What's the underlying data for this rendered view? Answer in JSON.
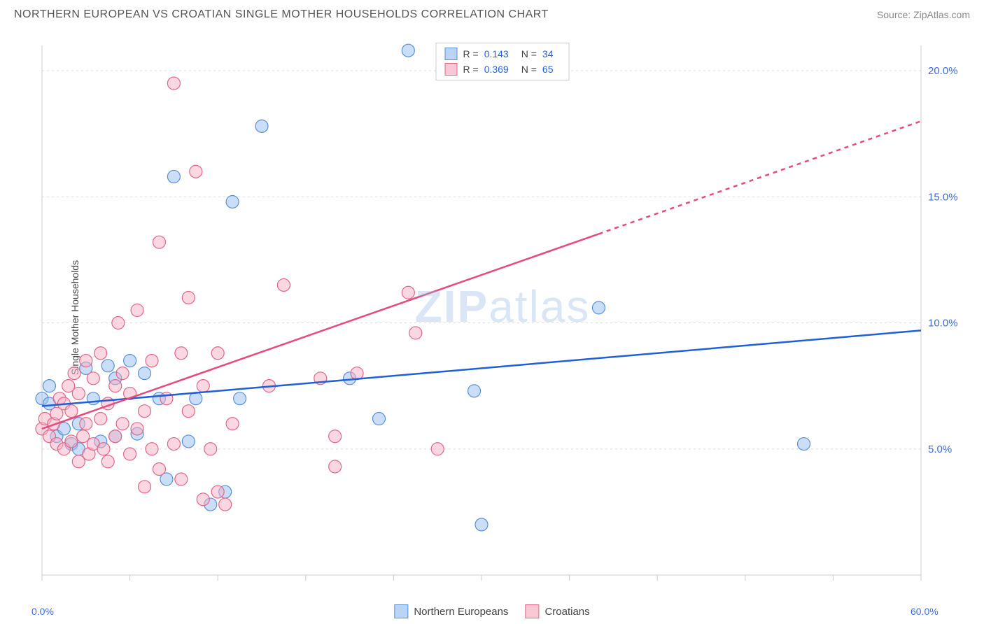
{
  "header": {
    "title": "NORTHERN EUROPEAN VS CROATIAN SINGLE MOTHER HOUSEHOLDS CORRELATION CHART",
    "source": "Source: ZipAtlas.com"
  },
  "chart": {
    "type": "scatter",
    "y_axis_label": "Single Mother Households",
    "watermark": "ZIPatlas",
    "background_color": "#ffffff",
    "grid_color": "#dddddd",
    "axis_line_color": "#cccccc",
    "tick_color": "#cccccc",
    "axis_label_color": "#3b6bdc",
    "xlim": [
      0,
      60
    ],
    "ylim": [
      0,
      21
    ],
    "x_ticks": [
      0,
      6,
      12,
      18,
      24,
      30,
      36,
      42,
      48,
      54,
      60
    ],
    "y_gridlines": [
      5,
      10,
      15,
      20
    ],
    "x_axis_labels": [
      {
        "value": 0,
        "label": "0.0%"
      },
      {
        "value": 60,
        "label": "60.0%"
      }
    ],
    "y_axis_labels": [
      {
        "value": 5,
        "label": "5.0%"
      },
      {
        "value": 10,
        "label": "10.0%"
      },
      {
        "value": 15,
        "label": "15.0%"
      },
      {
        "value": 20,
        "label": "20.0%"
      }
    ],
    "stats_box": {
      "rows": [
        {
          "swatch_fill": "#b9d4f5",
          "swatch_stroke": "#5a8fd8",
          "r_label": "R =",
          "r_value": "0.143",
          "n_label": "N =",
          "n_value": "34"
        },
        {
          "swatch_fill": "#f8c9d4",
          "swatch_stroke": "#e06788",
          "r_label": "R =",
          "r_value": "0.369",
          "n_label": "N =",
          "n_value": "65"
        }
      ]
    },
    "bottom_legend": [
      {
        "swatch_fill": "#b9d4f5",
        "swatch_stroke": "#5a8fd8",
        "label": "Northern Europeans"
      },
      {
        "swatch_fill": "#f8c9d4",
        "swatch_stroke": "#e06788",
        "label": "Croatians"
      }
    ],
    "series": [
      {
        "name": "Northern Europeans",
        "marker_fill": "rgba(150,190,240,0.5)",
        "marker_stroke": "#5a8fd8",
        "marker_r": 9,
        "trendline_color": "#1f5fd8",
        "trendline_width": 2.5,
        "trendline": {
          "x1": 0,
          "y1": 6.7,
          "x2": 60,
          "y2": 9.7,
          "dash_after_x": null
        },
        "points": [
          [
            0,
            7.0
          ],
          [
            0.5,
            6.8
          ],
          [
            1.0,
            5.5
          ],
          [
            1.5,
            5.8
          ],
          [
            2.0,
            5.2
          ],
          [
            2.5,
            6.0
          ],
          [
            2.5,
            5.0
          ],
          [
            3.0,
            8.2
          ],
          [
            3.5,
            7.0
          ],
          [
            4.0,
            5.3
          ],
          [
            4.5,
            8.3
          ],
          [
            5.0,
            7.8
          ],
          [
            5.0,
            5.5
          ],
          [
            6.0,
            8.5
          ],
          [
            6.5,
            5.6
          ],
          [
            7.0,
            8.0
          ],
          [
            8.0,
            7.0
          ],
          [
            8.5,
            3.8
          ],
          [
            9.0,
            15.8
          ],
          [
            10.0,
            5.3
          ],
          [
            10.5,
            7.0
          ],
          [
            11.5,
            2.8
          ],
          [
            12.5,
            3.3
          ],
          [
            13.0,
            14.8
          ],
          [
            13.5,
            7.0
          ],
          [
            15.0,
            17.8
          ],
          [
            21.0,
            7.8
          ],
          [
            23.0,
            6.2
          ],
          [
            29.5,
            7.3
          ],
          [
            30.0,
            2.0
          ],
          [
            38.0,
            10.6
          ],
          [
            52.0,
            5.2
          ],
          [
            25.0,
            20.8
          ],
          [
            0.5,
            7.5
          ]
        ]
      },
      {
        "name": "Croatians",
        "marker_fill": "rgba(245,175,195,0.5)",
        "marker_stroke": "#e06788",
        "marker_r": 9,
        "trendline_color": "#e84a7a",
        "trendline_width": 2.5,
        "trendline": {
          "x1": 0,
          "y1": 5.8,
          "x2": 60,
          "y2": 18.0,
          "dash_after_x": 38
        },
        "points": [
          [
            0,
            5.8
          ],
          [
            0.2,
            6.2
          ],
          [
            0.5,
            5.5
          ],
          [
            0.8,
            6.0
          ],
          [
            1.0,
            5.2
          ],
          [
            1.0,
            6.4
          ],
          [
            1.2,
            7.0
          ],
          [
            1.5,
            5.0
          ],
          [
            1.5,
            6.8
          ],
          [
            1.8,
            7.5
          ],
          [
            2.0,
            5.3
          ],
          [
            2.0,
            6.5
          ],
          [
            2.2,
            8.0
          ],
          [
            2.5,
            4.5
          ],
          [
            2.5,
            7.2
          ],
          [
            2.8,
            5.5
          ],
          [
            3.0,
            8.5
          ],
          [
            3.0,
            6.0
          ],
          [
            3.2,
            4.8
          ],
          [
            3.5,
            7.8
          ],
          [
            3.5,
            5.2
          ],
          [
            4.0,
            6.2
          ],
          [
            4.0,
            8.8
          ],
          [
            4.2,
            5.0
          ],
          [
            4.5,
            6.8
          ],
          [
            4.5,
            4.5
          ],
          [
            5.0,
            7.5
          ],
          [
            5.0,
            5.5
          ],
          [
            5.2,
            10.0
          ],
          [
            5.5,
            6.0
          ],
          [
            5.5,
            8.0
          ],
          [
            6.0,
            4.8
          ],
          [
            6.0,
            7.2
          ],
          [
            6.5,
            5.8
          ],
          [
            6.5,
            10.5
          ],
          [
            7.0,
            3.5
          ],
          [
            7.0,
            6.5
          ],
          [
            7.5,
            8.5
          ],
          [
            7.5,
            5.0
          ],
          [
            8.0,
            13.2
          ],
          [
            8.0,
            4.2
          ],
          [
            8.5,
            7.0
          ],
          [
            9.0,
            19.5
          ],
          [
            9.0,
            5.2
          ],
          [
            9.5,
            8.8
          ],
          [
            9.5,
            3.8
          ],
          [
            10.0,
            6.5
          ],
          [
            10.0,
            11.0
          ],
          [
            10.5,
            16.0
          ],
          [
            11.0,
            3.0
          ],
          [
            11.0,
            7.5
          ],
          [
            11.5,
            5.0
          ],
          [
            12.0,
            8.8
          ],
          [
            12.0,
            3.3
          ],
          [
            12.5,
            2.8
          ],
          [
            13.0,
            6.0
          ],
          [
            15.5,
            7.5
          ],
          [
            16.5,
            11.5
          ],
          [
            19.0,
            7.8
          ],
          [
            20.0,
            4.3
          ],
          [
            20.0,
            5.5
          ],
          [
            21.5,
            8.0
          ],
          [
            25.0,
            11.2
          ],
          [
            25.5,
            9.6
          ],
          [
            27.0,
            5.0
          ]
        ]
      }
    ]
  }
}
